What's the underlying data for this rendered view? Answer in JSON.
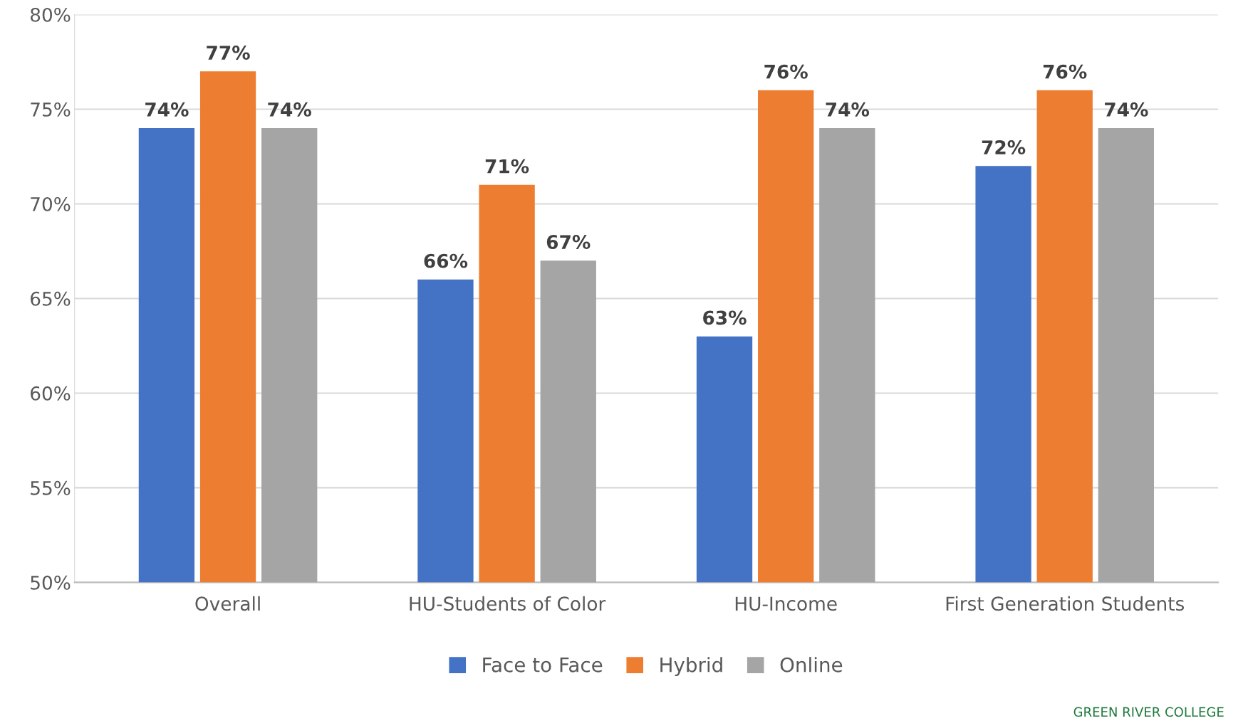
{
  "chart_data": {
    "type": "bar",
    "categories": [
      "Overall",
      "HU-Students of Color",
      "HU-Income",
      "First Generation Students"
    ],
    "series": [
      {
        "name": "Face to Face",
        "color": "#4472c4",
        "values": [
          74,
          66,
          63,
          72
        ],
        "value_labels": [
          "74%",
          "66%",
          "63%",
          "72%"
        ]
      },
      {
        "name": "Hybrid",
        "color": "#ed7d31",
        "values": [
          77,
          71,
          76,
          76
        ],
        "value_labels": [
          "77%",
          "71%",
          "76%",
          "76%"
        ]
      },
      {
        "name": "Online",
        "color": "#a5a5a5",
        "values": [
          74,
          67,
          74,
          74
        ],
        "value_labels": [
          "74%",
          "67%",
          "74%",
          "74%"
        ]
      }
    ],
    "ylim": [
      50,
      80
    ],
    "yticks": [
      {
        "value": 50,
        "label": "50%"
      },
      {
        "value": 55,
        "label": "55%"
      },
      {
        "value": 60,
        "label": "60%"
      },
      {
        "value": 65,
        "label": "65%"
      },
      {
        "value": 70,
        "label": "70%"
      },
      {
        "value": 75,
        "label": "75%"
      },
      {
        "value": 80,
        "label": "80%"
      }
    ],
    "grid": "y",
    "legend": "bottom",
    "annotations": [
      "GREEN RIVER COLLEGE"
    ]
  }
}
